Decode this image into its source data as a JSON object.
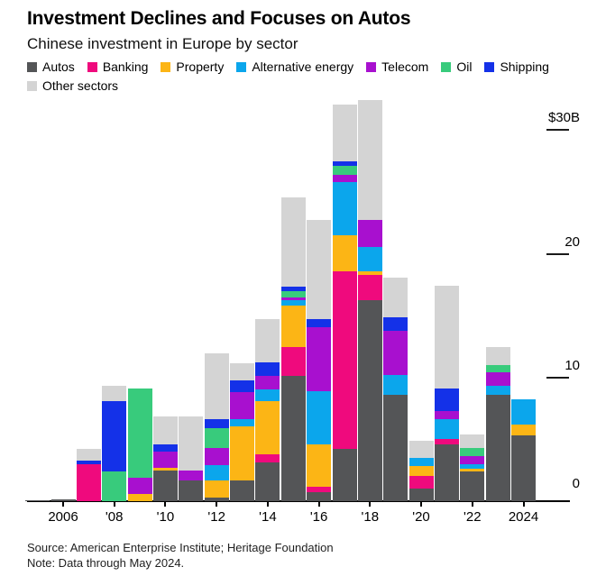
{
  "header": {
    "title": "Investment Declines and Focuses on Autos",
    "subtitle": "Chinese investment in Europe by sector"
  },
  "legend": {
    "items": [
      {
        "label": "Autos",
        "color": "#545557"
      },
      {
        "label": "Banking",
        "color": "#ef0a7d"
      },
      {
        "label": "Property",
        "color": "#fcb515"
      },
      {
        "label": "Alternative energy",
        "color": "#0ba6ec"
      },
      {
        "label": "Telecom",
        "color": "#a810cf"
      },
      {
        "label": "Oil",
        "color": "#38cb7c"
      },
      {
        "label": "Shipping",
        "color": "#1431e8"
      },
      {
        "label": "Other sectors",
        "color": "#d4d4d4"
      }
    ]
  },
  "chart_data": {
    "type": "bar",
    "variant": "stacked-column",
    "title": "Investment Declines and Focuses on Autos",
    "subtitle": "Chinese investment in Europe by sector",
    "unit": "billion USD",
    "xlabel": "",
    "ylabel": "$30B",
    "ylim": [
      0,
      32.5
    ],
    "grid": false,
    "legend_position": "top",
    "categories": [
      2005,
      2006,
      2007,
      2008,
      2009,
      2010,
      2011,
      2012,
      2013,
      2014,
      2015,
      2016,
      2017,
      2018,
      2019,
      2020,
      2021,
      2022,
      2023,
      2024
    ],
    "series": [
      {
        "name": "Autos",
        "color": "#545557",
        "values": [
          0.1,
          0.15,
          0,
          0,
          0,
          2.5,
          1.7,
          0.3,
          1.7,
          3.1,
          10.1,
          0.7,
          4.2,
          16.2,
          8.6,
          1.0,
          4.6,
          2.4,
          8.6,
          5.3
        ]
      },
      {
        "name": "Banking",
        "color": "#ef0a7d",
        "values": [
          0,
          0,
          3.0,
          0,
          0,
          0,
          0,
          0,
          0,
          0.7,
          2.3,
          0.5,
          14.3,
          2.0,
          0,
          1.0,
          0.4,
          0,
          0,
          0
        ]
      },
      {
        "name": "Property",
        "color": "#fcb515",
        "values": [
          0,
          0,
          0,
          0,
          0.6,
          0.2,
          0,
          1.4,
          4.3,
          4.3,
          3.4,
          3.4,
          2.9,
          0.3,
          0,
          0.8,
          0,
          0.2,
          0,
          0.9
        ]
      },
      {
        "name": "Alternative energy",
        "color": "#0ba6ec",
        "values": [
          0,
          0,
          0,
          0,
          0,
          0,
          0,
          1.2,
          0.6,
          0.9,
          0.4,
          4.3,
          4.3,
          2.0,
          1.6,
          0.7,
          1.6,
          0.4,
          0.7,
          2.0
        ]
      },
      {
        "name": "Telecom",
        "color": "#a810cf",
        "values": [
          0,
          0,
          0,
          0,
          1.3,
          1.3,
          0.8,
          1.4,
          2.2,
          1.1,
          0.2,
          5.1,
          0.6,
          2.2,
          3.5,
          0,
          0.7,
          0.6,
          1.1,
          0
        ]
      },
      {
        "name": "Oil",
        "color": "#38cb7c",
        "values": [
          0,
          0,
          0,
          2.4,
          7.2,
          0,
          0,
          1.6,
          0,
          0,
          0.5,
          0,
          0.7,
          0,
          0,
          0,
          0,
          0.7,
          0.6,
          0
        ]
      },
      {
        "name": "Shipping",
        "color": "#1431e8",
        "values": [
          0,
          0,
          0.25,
          5.7,
          0,
          0.6,
          0,
          0.7,
          0.9,
          1.1,
          0.4,
          0.7,
          0.4,
          0,
          1.1,
          0,
          1.8,
          0,
          0,
          0
        ]
      },
      {
        "name": "Other sectors",
        "color": "#d4d4d4",
        "values": [
          0,
          0,
          0.95,
          1.2,
          0,
          2.2,
          4.3,
          5.3,
          1.4,
          3.5,
          7.2,
          8.0,
          4.6,
          9.6,
          3.2,
          1.4,
          8.3,
          1.1,
          1.4,
          0
        ]
      }
    ],
    "y_axis": {
      "ticks": [
        {
          "label": "$30B",
          "value": 30
        },
        {
          "label": "20",
          "value": 20
        },
        {
          "label": "10",
          "value": 10
        },
        {
          "label": "0",
          "value": 0
        }
      ]
    },
    "x_axis": {
      "ticks": [
        {
          "label": "2006",
          "year": 2006
        },
        {
          "label": "'08",
          "year": 2008
        },
        {
          "label": "'10",
          "year": 2010
        },
        {
          "label": "'12",
          "year": 2012
        },
        {
          "label": "'14",
          "year": 2014
        },
        {
          "label": "'16",
          "year": 2016
        },
        {
          "label": "'18",
          "year": 2018
        },
        {
          "label": "'20",
          "year": 2020
        },
        {
          "label": "'22",
          "year": 2022
        },
        {
          "label": "2024",
          "year": 2024
        }
      ]
    }
  },
  "footer": {
    "source": "Source: American Enterprise Institute; Heritage Foundation",
    "note": "Note: Data through May 2024."
  }
}
